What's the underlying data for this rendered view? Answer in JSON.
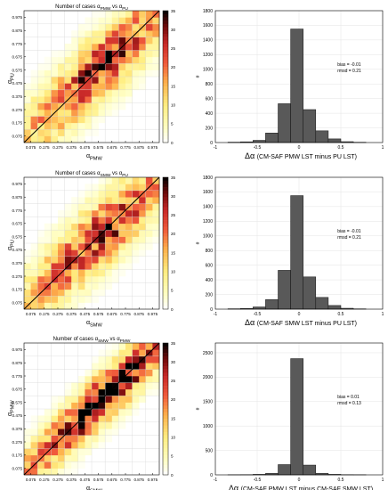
{
  "chart_data": [
    {
      "type": "heatmap",
      "title": {
        "main": "Number of cases ",
        "a": "PMW",
        "b": "PU",
        "vs": " vs "
      },
      "xlabel": "PMW",
      "ylabel": "PU",
      "x_ticks": [
        "0.075",
        "0.175",
        "0.275",
        "0.375",
        "0.475",
        "0.575",
        "0.675",
        "0.775",
        "0.875",
        "0.975"
      ],
      "y_ticks": [
        "0.975",
        "0.875",
        "0.775",
        "0.675",
        "0.575",
        "0.475",
        "0.375",
        "0.275",
        "0.175",
        "0.075"
      ],
      "colorbar_ticks": [
        "35",
        "30",
        "25",
        "20",
        "15",
        "10",
        "5",
        "0"
      ],
      "clim": [
        0,
        35
      ],
      "grid_size": 20,
      "spread": 3.6,
      "peak": 26,
      "diagonal_line": true
    },
    {
      "type": "bar",
      "x_ticks": [
        "-1",
        "-0.5",
        "0",
        "0.5",
        "1"
      ],
      "y_ticks": [
        "0",
        "200",
        "400",
        "600",
        "800",
        "1000",
        "1200",
        "1400",
        "1600",
        "1800"
      ],
      "ylim": [
        0,
        1800
      ],
      "xlim": [
        -1,
        1
      ],
      "bin_edges": [
        -0.85,
        -0.7,
        -0.55,
        -0.4,
        -0.25,
        -0.1,
        0.05,
        0.2,
        0.35,
        0.5,
        0.65,
        0.8
      ],
      "values": [
        5,
        10,
        30,
        130,
        530,
        1550,
        450,
        160,
        50,
        12,
        4
      ],
      "xlabel_text": "(CM-SAF PMW LST minus PU LST)",
      "ylabel": "#",
      "stats": [
        "bias = -0.01",
        "rmsd = 0.21"
      ]
    },
    {
      "type": "heatmap",
      "title": {
        "main": "Number of cases ",
        "a": "SMW",
        "b": "PU",
        "vs": " vs "
      },
      "xlabel": "SMW",
      "ylabel": "PU",
      "x_ticks": [
        "0.075",
        "0.175",
        "0.275",
        "0.375",
        "0.475",
        "0.575",
        "0.675",
        "0.775",
        "0.875",
        "0.975"
      ],
      "y_ticks": [
        "0.975",
        "0.875",
        "0.775",
        "0.675",
        "0.575",
        "0.475",
        "0.375",
        "0.275",
        "0.175",
        "0.075"
      ],
      "colorbar_ticks": [
        "35",
        "30",
        "25",
        "20",
        "15",
        "10",
        "5",
        "0"
      ],
      "clim": [
        0,
        35
      ],
      "grid_size": 20,
      "spread": 3.6,
      "peak": 26,
      "diagonal_line": true
    },
    {
      "type": "bar",
      "x_ticks": [
        "-1",
        "-0.5",
        "0",
        "0.5",
        "1"
      ],
      "y_ticks": [
        "0",
        "200",
        "400",
        "600",
        "800",
        "1000",
        "1200",
        "1400",
        "1600",
        "1800"
      ],
      "ylim": [
        0,
        1800
      ],
      "xlim": [
        -1,
        1
      ],
      "bin_edges": [
        -0.85,
        -0.7,
        -0.55,
        -0.4,
        -0.25,
        -0.1,
        0.05,
        0.2,
        0.35,
        0.5,
        0.65,
        0.8
      ],
      "values": [
        5,
        10,
        30,
        130,
        530,
        1550,
        440,
        160,
        50,
        12,
        4
      ],
      "xlabel_text": "(CM-SAF SMW LST minus PU LST)",
      "ylabel": "#",
      "stats": [
        "bias = -0.01",
        "rmsd = 0.21"
      ]
    },
    {
      "type": "heatmap",
      "title": {
        "main": "Number of cases ",
        "a": "SMW",
        "b": "PMW",
        "vs": " vs "
      },
      "xlabel": "SMW",
      "ylabel": "PMW",
      "x_ticks": [
        "0.075",
        "0.175",
        "0.275",
        "0.375",
        "0.475",
        "0.575",
        "0.675",
        "0.775",
        "0.875",
        "0.975"
      ],
      "y_ticks": [
        "0.975",
        "0.875",
        "0.775",
        "0.675",
        "0.575",
        "0.475",
        "0.375",
        "0.275",
        "0.175",
        "0.075"
      ],
      "colorbar_ticks": [
        "35",
        "30",
        "25",
        "20",
        "15",
        "10",
        "5",
        "0"
      ],
      "clim": [
        0,
        35
      ],
      "grid_size": 20,
      "spread": 2.6,
      "peak": 34,
      "diagonal_line": true
    },
    {
      "type": "bar",
      "x_ticks": [
        "-1",
        "-0.5",
        "0",
        "0.5",
        "1"
      ],
      "y_ticks": [
        "0",
        "500",
        "1000",
        "1500",
        "2000",
        "2500"
      ],
      "ylim": [
        0,
        2700
      ],
      "xlim": [
        -1,
        1
      ],
      "bin_edges": [
        -0.85,
        -0.7,
        -0.55,
        -0.4,
        -0.25,
        -0.1,
        0.05,
        0.2,
        0.35,
        0.5,
        0.65,
        0.8
      ],
      "values": [
        2,
        4,
        10,
        30,
        210,
        2380,
        200,
        30,
        10,
        4,
        2
      ],
      "xlabel_text": "(CM-SAF PMW LST minus CM-SAF SMW LST)",
      "ylabel": "#",
      "stats": [
        "bias = 0.01",
        "rmsd = 0.13"
      ]
    }
  ],
  "colors": {
    "bar_fill": "#595959",
    "bar_edge": "#111111",
    "diagonal": "#000000"
  },
  "delta_alpha": "Δα",
  "alpha_symbol": "α"
}
